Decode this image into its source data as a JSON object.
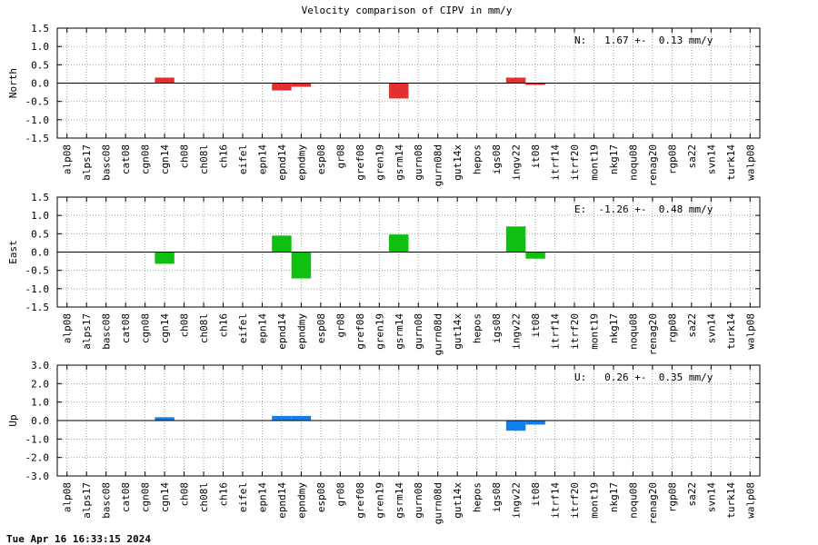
{
  "title": "Velocity comparison of CIPV in mm/y",
  "timestamp": "Tue Apr 16 16:33:15 2024",
  "chart_data": [
    {
      "type": "bar",
      "ylabel": "North",
      "color": "#e03030",
      "ylim": [
        -1.5,
        1.5
      ],
      "yticks": [
        "1.5",
        "1.0",
        "0.5",
        "0.0",
        "-0.5",
        "-1.0",
        "-1.5"
      ],
      "ytick_values": [
        1.5,
        1.0,
        0.5,
        0.0,
        -0.5,
        -1.0,
        -1.5
      ],
      "stat": "N:   1.67 +-  0.13 mm/y",
      "grid": true,
      "categories": [
        "alp08",
        "alps17",
        "basc08",
        "cat08",
        "cgn08",
        "cgn14",
        "ch08",
        "ch08l",
        "ch16",
        "eifel",
        "epn14",
        "epnd14",
        "epndmy",
        "esp08",
        "gr08",
        "gref08",
        "gren19",
        "gsrm14",
        "gurn08",
        "gurn08d",
        "gut14x",
        "hepos",
        "igs08",
        "ingv22",
        "it08",
        "itrf14",
        "itrf20",
        "mont19",
        "nkg17",
        "noqu08",
        "renag20",
        "rgp08",
        "sa22",
        "svn14",
        "turk14",
        "walp08"
      ],
      "values": [
        0,
        0,
        0,
        0,
        0,
        0.15,
        0,
        0,
        0,
        0,
        0,
        -0.2,
        -0.1,
        0,
        0,
        0,
        0,
        -0.42,
        0,
        0,
        0,
        0,
        0,
        0.15,
        -0.05,
        0,
        0,
        0,
        0,
        0,
        0,
        0,
        0,
        0,
        0,
        0
      ]
    },
    {
      "type": "bar",
      "ylabel": "East",
      "color": "#10c010",
      "ylim": [
        -1.5,
        1.5
      ],
      "yticks": [
        "1.5",
        "1.0",
        "0.5",
        "0.0",
        "-0.5",
        "-1.0",
        "-1.5"
      ],
      "ytick_values": [
        1.5,
        1.0,
        0.5,
        0.0,
        -0.5,
        -1.0,
        -1.5
      ],
      "stat": "E:  -1.26 +-  0.48 mm/y",
      "grid": true,
      "categories": [
        "alp08",
        "alps17",
        "basc08",
        "cat08",
        "cgn08",
        "cgn14",
        "ch08",
        "ch08l",
        "ch16",
        "eifel",
        "epn14",
        "epnd14",
        "epndmy",
        "esp08",
        "gr08",
        "gref08",
        "gren19",
        "gsrm14",
        "gurn08",
        "gurn08d",
        "gut14x",
        "hepos",
        "igs08",
        "ingv22",
        "it08",
        "itrf14",
        "itrf20",
        "mont19",
        "nkg17",
        "noqu08",
        "renag20",
        "rgp08",
        "sa22",
        "svn14",
        "turk14",
        "walp08"
      ],
      "values": [
        0,
        0,
        0,
        0,
        0,
        -0.32,
        0,
        0,
        0,
        0,
        0,
        0.45,
        -0.72,
        0,
        0,
        0,
        0,
        0.48,
        0,
        0,
        0,
        0,
        0,
        0.7,
        -0.18,
        0,
        0,
        0,
        0,
        0,
        0,
        0,
        0,
        0,
        0,
        0
      ]
    },
    {
      "type": "bar",
      "ylabel": "Up",
      "color": "#1080f0",
      "ylim": [
        -3.0,
        3.0
      ],
      "yticks": [
        "3.0",
        "2.0",
        "1.0",
        "0.0",
        "-1.0",
        "-2.0",
        "-3.0"
      ],
      "ytick_values": [
        3.0,
        2.0,
        1.0,
        0.0,
        -1.0,
        -2.0,
        -3.0
      ],
      "stat": "U:   0.26 +-  0.35 mm/y",
      "grid": true,
      "categories": [
        "alp08",
        "alps17",
        "basc08",
        "cat08",
        "cgn08",
        "cgn14",
        "ch08",
        "ch08l",
        "ch16",
        "eifel",
        "epn14",
        "epnd14",
        "epndmy",
        "esp08",
        "gr08",
        "gref08",
        "gren19",
        "gsrm14",
        "gurn08",
        "gurn08d",
        "gut14x",
        "hepos",
        "igs08",
        "ingv22",
        "it08",
        "itrf14",
        "itrf20",
        "mont19",
        "nkg17",
        "noqu08",
        "renag20",
        "rgp08",
        "sa22",
        "svn14",
        "turk14",
        "walp08"
      ],
      "values": [
        0,
        0,
        0,
        0,
        0,
        0.18,
        0,
        0,
        0,
        0,
        0,
        0.25,
        0.25,
        0,
        0,
        0,
        0,
        0,
        0,
        0,
        0,
        0,
        0,
        -0.55,
        -0.22,
        0,
        0,
        0,
        0,
        0,
        0,
        0,
        0,
        0,
        0,
        0
      ]
    }
  ]
}
